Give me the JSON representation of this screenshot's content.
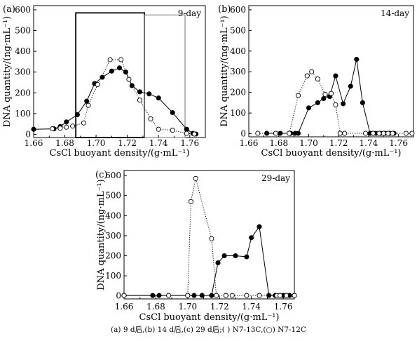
{
  "caption": "(a) 9 d后,(b) 14 d后,(c) 29 d后;( ) N7-13C,(○) N7-12C",
  "chart_data": [
    {
      "type": "line",
      "panel_label": "(a)",
      "annotation": "9-day",
      "xlabel": "CsCl buoyant density/(g·mL⁻¹)",
      "ylabel": "DNA quantity/(ng·mL⁻¹)",
      "xlim": [
        1.66,
        1.77
      ],
      "ylim": [
        -15,
        620
      ],
      "xticks": [
        "1.66",
        "1.68",
        "1.70",
        "1.72",
        "1.74",
        "1.76"
      ],
      "yticks": [
        "0",
        "100",
        "200",
        "300",
        "400",
        "500",
        "600"
      ],
      "series": [
        {
          "marker": "filled",
          "line": "solid",
          "color": "#000000",
          "x": [
            1.66,
            1.673,
            1.677,
            1.681,
            1.688,
            1.694,
            1.699,
            1.704,
            1.71,
            1.715,
            1.719,
            1.723,
            1.728,
            1.734,
            1.74,
            1.749,
            1.758,
            1.762,
            1.764
          ],
          "y": [
            25,
            27,
            38,
            60,
            95,
            160,
            245,
            275,
            305,
            320,
            300,
            235,
            205,
            195,
            175,
            105,
            25,
            5,
            2
          ]
        },
        {
          "marker": "open",
          "line": "dotted",
          "color": "#000000",
          "x": [
            1.672,
            1.677,
            1.681,
            1.685,
            1.692,
            1.695,
            1.701,
            1.709,
            1.716,
            1.721,
            1.728,
            1.735,
            1.74,
            1.749,
            1.758,
            1.763
          ],
          "y": [
            27,
            30,
            35,
            40,
            55,
            140,
            240,
            360,
            360,
            265,
            165,
            75,
            25,
            20,
            5,
            2
          ]
        }
      ],
      "highlight_boxes": [
        {
          "x_from": 1.687,
          "x_to": 1.731,
          "y_from": -15,
          "y_to": 585,
          "stroke": "#000000"
        },
        {
          "x_from": 1.731,
          "x_to": 1.757,
          "y_from": -15,
          "y_to": 575,
          "stroke": "#888888"
        }
      ]
    },
    {
      "type": "line",
      "panel_label": "(b)",
      "annotation": "14-day",
      "xlabel": "CsCl buoyant density/(g·mL⁻¹)",
      "ylabel": "DNA quantity/(ng·mL⁻¹)",
      "xlim": [
        1.66,
        1.77
      ],
      "ylim": [
        -15,
        620
      ],
      "xticks": [
        "1.66",
        "1.68",
        "1.70",
        "1.72",
        "1.74",
        "1.76"
      ],
      "yticks": [
        "0",
        "100",
        "200",
        "300",
        "400",
        "500",
        "600"
      ],
      "series": [
        {
          "marker": "filled",
          "line": "solid",
          "color": "#000000",
          "x": [
            1.672,
            1.681,
            1.688,
            1.691,
            1.693,
            1.7,
            1.706,
            1.71,
            1.714,
            1.718,
            1.723,
            1.728,
            1.732,
            1.736,
            1.741,
            1.743,
            1.745,
            1.748,
            1.751,
            1.754,
            1.757
          ],
          "y": [
            2,
            2,
            2,
            2,
            2,
            125,
            150,
            170,
            180,
            280,
            145,
            230,
            360,
            150,
            2,
            2,
            2,
            2,
            2,
            2,
            2
          ]
        },
        {
          "marker": "open",
          "line": "dotted",
          "color": "#000000",
          "x": [
            1.666,
            1.678,
            1.687,
            1.693,
            1.699,
            1.702,
            1.706,
            1.711,
            1.715,
            1.718,
            1.721,
            1.724,
            1.738,
            1.743,
            1.747,
            1.75,
            1.753,
            1.756,
            1.765,
            1.769
          ],
          "y": [
            2,
            2,
            2,
            185,
            280,
            300,
            265,
            190,
            195,
            140,
            2,
            2,
            2,
            2,
            2,
            2,
            2,
            2,
            2,
            2
          ]
        }
      ]
    },
    {
      "type": "line",
      "panel_label": "(c)",
      "annotation": "29-day",
      "xlabel": "CsCl buoyant density/(g·mL⁻¹)",
      "ylabel": "DNA quantity/(ng·mL⁻¹)",
      "xlim": [
        1.66,
        1.767
      ],
      "ylim": [
        -15,
        625
      ],
      "xticks": [
        "1.66",
        "1.68",
        "1.70",
        "1.72",
        "1.74",
        "1.76"
      ],
      "yticks": [
        "0",
        "100",
        "200",
        "300",
        "400",
        "500",
        "600"
      ],
      "series": [
        {
          "marker": "filled",
          "line": "solid",
          "color": "#000000",
          "x": [
            1.66,
            1.678,
            1.682,
            1.7,
            1.704,
            1.709,
            1.715,
            1.719,
            1.723,
            1.73,
            1.737,
            1.74,
            1.745,
            1.751,
            1.755,
            1.76,
            1.764,
            1.767
          ],
          "y": [
            2,
            2,
            2,
            2,
            2,
            2,
            2,
            165,
            200,
            200,
            195,
            290,
            345,
            2,
            2,
            2,
            2,
            2
          ]
        },
        {
          "marker": "open",
          "line": "dotted",
          "color": "#000000",
          "x": [
            1.66,
            1.688,
            1.7,
            1.702,
            1.705,
            1.715,
            1.718,
            1.724,
            1.728,
            1.737,
            1.745,
            1.756,
            1.758,
            1.762,
            1.767
          ],
          "y": [
            2,
            2,
            2,
            470,
            585,
            285,
            2,
            2,
            2,
            2,
            2,
            2,
            2,
            2,
            2
          ]
        }
      ]
    }
  ]
}
